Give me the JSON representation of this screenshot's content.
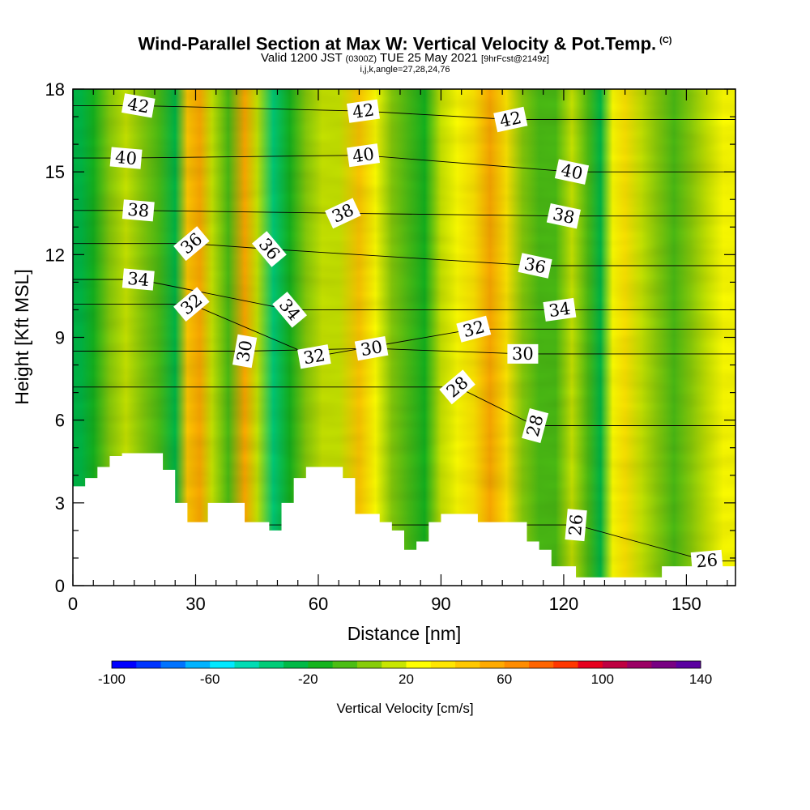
{
  "title": {
    "main": "Wind-Parallel Section at Max W: Vertical Velocity & Pot.Temp.",
    "copyright_mark": "(C)",
    "valid_prefix": "Valid 1200 JST",
    "valid_utc": "(0300Z)",
    "valid_date": "TUE 25 May 2021",
    "forecast": "[9hrFcst@2149z]",
    "params": "i,j,k,angle=27,28,24,76"
  },
  "chart_data": {
    "type": "heatmap",
    "overlay": "contour",
    "xlabel": "Distance [nm]",
    "ylabel": "Height [Kft MSL]",
    "xlim": [
      0,
      162
    ],
    "ylim": [
      0,
      18
    ],
    "x_ticks": [
      "0",
      "30",
      "60",
      "90",
      "120",
      "150"
    ],
    "y_ticks": [
      "0",
      "3",
      "6",
      "9",
      "12",
      "15",
      "18"
    ],
    "colorbar": {
      "label": "Vertical Velocity [cm/s]",
      "min": -100,
      "max": 140,
      "step": 10,
      "tick_labels": [
        "-100",
        "-60",
        "-20",
        "20",
        "60",
        "100",
        "140"
      ],
      "colors": [
        "#0000ff",
        "#0035ff",
        "#0073ff",
        "#00b3ff",
        "#00e8ff",
        "#00dcb4",
        "#00cd78",
        "#00b946",
        "#14b41e",
        "#4bbe14",
        "#87cd0a",
        "#c8e600",
        "#ffff00",
        "#ffe600",
        "#ffc800",
        "#ffaa00",
        "#ff8c00",
        "#ff6400",
        "#ff3700",
        "#e6001e",
        "#be0041",
        "#9b0064",
        "#780082",
        "#5a00a0"
      ]
    },
    "vertical_velocity_bands": [
      {
        "x": 2,
        "w": -28
      },
      {
        "x": 5,
        "w": -15
      },
      {
        "x": 9,
        "w": 0
      },
      {
        "x": 13,
        "w": 10
      },
      {
        "x": 17,
        "w": 5
      },
      {
        "x": 21,
        "w": -2
      },
      {
        "x": 25,
        "w": -25
      },
      {
        "x": 28,
        "w": 45
      },
      {
        "x": 31,
        "w": 55
      },
      {
        "x": 34,
        "w": 12
      },
      {
        "x": 38,
        "w": -5
      },
      {
        "x": 42,
        "w": 55
      },
      {
        "x": 45,
        "w": 15
      },
      {
        "x": 49,
        "w": -40
      },
      {
        "x": 53,
        "w": -20
      },
      {
        "x": 57,
        "w": 5
      },
      {
        "x": 61,
        "w": 15
      },
      {
        "x": 65,
        "w": 10
      },
      {
        "x": 70,
        "w": 40
      },
      {
        "x": 74,
        "w": 25
      },
      {
        "x": 78,
        "w": 8
      },
      {
        "x": 82,
        "w": -5
      },
      {
        "x": 86,
        "w": -18
      },
      {
        "x": 90,
        "w": 15
      },
      {
        "x": 94,
        "w": 22
      },
      {
        "x": 98,
        "w": 32
      },
      {
        "x": 102,
        "w": 55
      },
      {
        "x": 106,
        "w": 35
      },
      {
        "x": 110,
        "w": 5
      },
      {
        "x": 114,
        "w": -10
      },
      {
        "x": 118,
        "w": -8
      },
      {
        "x": 122,
        "w": 10
      },
      {
        "x": 126,
        "w": -10
      },
      {
        "x": 129,
        "w": -30
      },
      {
        "x": 132,
        "w": 20
      },
      {
        "x": 135,
        "w": 30
      },
      {
        "x": 139,
        "w": 10
      },
      {
        "x": 143,
        "w": 2
      },
      {
        "x": 147,
        "w": -5
      },
      {
        "x": 151,
        "w": 5
      },
      {
        "x": 155,
        "w": 15
      },
      {
        "x": 159,
        "w": 20
      }
    ],
    "terrain_kft": [
      [
        0,
        3.6
      ],
      [
        3,
        3.9
      ],
      [
        6,
        4.3
      ],
      [
        9,
        4.7
      ],
      [
        12,
        4.8
      ],
      [
        18,
        4.8
      ],
      [
        22,
        4.2
      ],
      [
        25,
        3.0
      ],
      [
        28,
        2.3
      ],
      [
        30,
        2.3
      ],
      [
        33,
        3.0
      ],
      [
        36,
        3.0
      ],
      [
        42,
        2.3
      ],
      [
        45,
        2.3
      ],
      [
        48,
        2.0
      ],
      [
        51,
        3.0
      ],
      [
        54,
        3.9
      ],
      [
        57,
        4.3
      ],
      [
        63,
        4.3
      ],
      [
        66,
        3.9
      ],
      [
        69,
        2.6
      ],
      [
        75,
        2.3
      ],
      [
        78,
        2.0
      ],
      [
        81,
        1.3
      ],
      [
        84,
        1.6
      ],
      [
        87,
        2.3
      ],
      [
        90,
        2.6
      ],
      [
        96,
        2.6
      ],
      [
        99,
        2.3
      ],
      [
        108,
        2.3
      ],
      [
        111,
        1.6
      ],
      [
        114,
        1.3
      ],
      [
        117,
        0.7
      ],
      [
        120,
        0.7
      ],
      [
        123,
        0.3
      ],
      [
        129,
        0.3
      ],
      [
        141,
        0.3
      ],
      [
        144,
        0.7
      ],
      [
        156,
        0.7
      ],
      [
        160,
        0.7
      ]
    ],
    "pot_temp_labels": [
      {
        "value": "42",
        "x": 16,
        "y": 17.4,
        "rot": 10
      },
      {
        "value": "42",
        "x": 71,
        "y": 17.2,
        "rot": -8
      },
      {
        "value": "42",
        "x": 107,
        "y": 16.9,
        "rot": -12
      },
      {
        "value": "40",
        "x": 13,
        "y": 15.5,
        "rot": 5
      },
      {
        "value": "40",
        "x": 71,
        "y": 15.6,
        "rot": -8
      },
      {
        "value": "40",
        "x": 122,
        "y": 15.0,
        "rot": 12
      },
      {
        "value": "38",
        "x": 16,
        "y": 13.6,
        "rot": 5
      },
      {
        "value": "38",
        "x": 66,
        "y": 13.5,
        "rot": -25
      },
      {
        "value": "38",
        "x": 120,
        "y": 13.4,
        "rot": 12
      },
      {
        "value": "36",
        "x": 29,
        "y": 12.4,
        "rot": -40
      },
      {
        "value": "36",
        "x": 48,
        "y": 12.2,
        "rot": 50
      },
      {
        "value": "36",
        "x": 113,
        "y": 11.6,
        "rot": 12
      },
      {
        "value": "34",
        "x": 16,
        "y": 11.1,
        "rot": 5
      },
      {
        "value": "34",
        "x": 53,
        "y": 10.0,
        "rot": 50
      },
      {
        "value": "34",
        "x": 119,
        "y": 10.0,
        "rot": -8
      },
      {
        "value": "32",
        "x": 29,
        "y": 10.2,
        "rot": -40
      },
      {
        "value": "32",
        "x": 59,
        "y": 8.3,
        "rot": -10
      },
      {
        "value": "32",
        "x": 98,
        "y": 9.3,
        "rot": -15
      },
      {
        "value": "30",
        "x": 42,
        "y": 8.5,
        "rot": -80
      },
      {
        "value": "30",
        "x": 73,
        "y": 8.6,
        "rot": -10
      },
      {
        "value": "30",
        "x": 110,
        "y": 8.4,
        "rot": 0
      },
      {
        "value": "28",
        "x": 94,
        "y": 7.2,
        "rot": -40
      },
      {
        "value": "28",
        "x": 113,
        "y": 5.8,
        "rot": -75
      },
      {
        "value": "26",
        "x": 123,
        "y": 2.2,
        "rot": -85
      },
      {
        "value": "26",
        "x": 155,
        "y": 0.9,
        "rot": -5
      }
    ]
  }
}
